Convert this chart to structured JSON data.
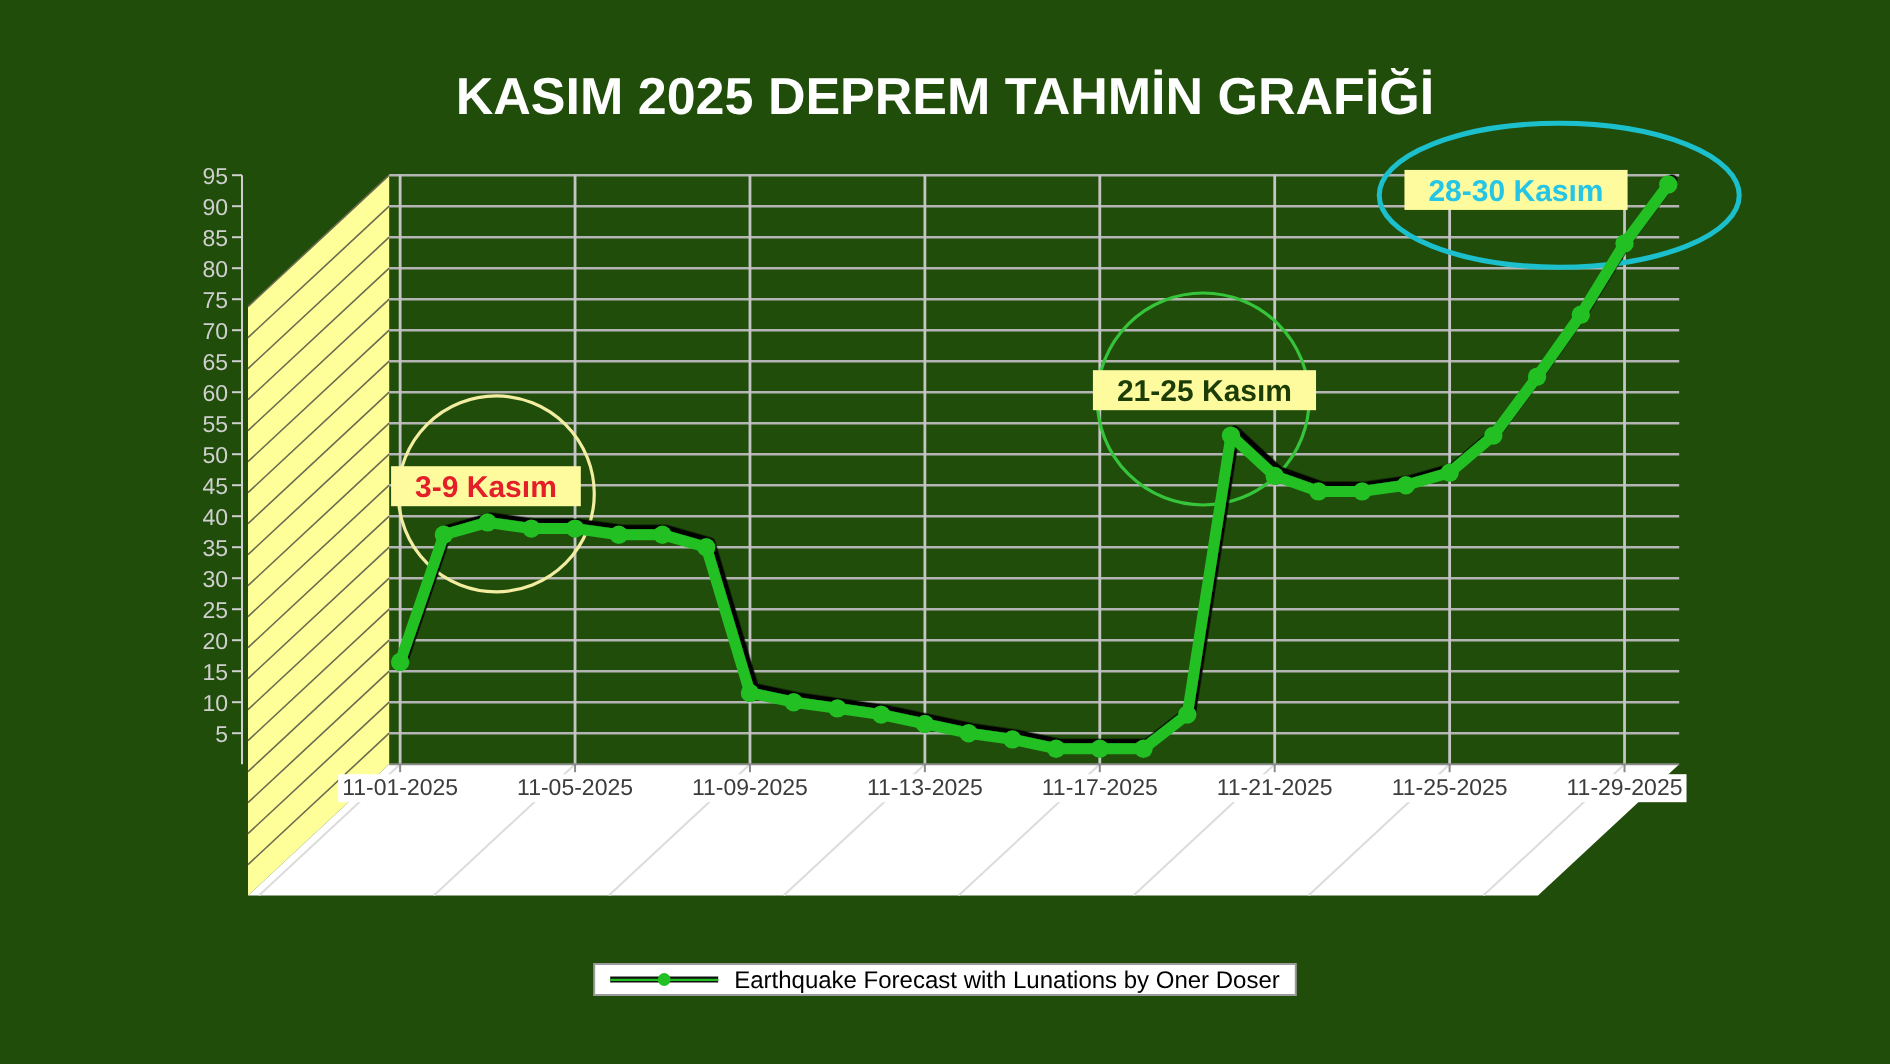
{
  "chart_data": {
    "type": "line",
    "title": "KASIM 2025 DEPREM TAHMİN GRAFİĞİ",
    "x": [
      "2025-11-01",
      "2025-11-02",
      "2025-11-03",
      "2025-11-04",
      "2025-11-05",
      "2025-11-06",
      "2025-11-07",
      "2025-11-08",
      "2025-11-09",
      "2025-11-10",
      "2025-11-11",
      "2025-11-12",
      "2025-11-13",
      "2025-11-14",
      "2025-11-15",
      "2025-11-16",
      "2025-11-17",
      "2025-11-18",
      "2025-11-19",
      "2025-11-20",
      "2025-11-21",
      "2025-11-22",
      "2025-11-23",
      "2025-11-24",
      "2025-11-25",
      "2025-11-26",
      "2025-11-27",
      "2025-11-28",
      "2025-11-29",
      "2025-11-30"
    ],
    "series": [
      {
        "name": "Earthquake Forecast with Lunations by Oner Doser",
        "color": "#22c022",
        "values": [
          16.5,
          37,
          39,
          38,
          38,
          37,
          37,
          35,
          11.5,
          10,
          9,
          8,
          6.5,
          5,
          4,
          2.5,
          2.5,
          2.5,
          8,
          53,
          46.5,
          44,
          44,
          45,
          47,
          53,
          62.5,
          72.5,
          84,
          93.5
        ]
      }
    ],
    "xlim": [
      "2025-10-31T18:00",
      "2025-11-30T06:00"
    ],
    "xticks": [
      {
        "value": "2025-11-01",
        "label": "11-01-2025"
      },
      {
        "value": "2025-11-05",
        "label": "11-05-2025"
      },
      {
        "value": "2025-11-09",
        "label": "11-09-2025"
      },
      {
        "value": "2025-11-13",
        "label": "11-13-2025"
      },
      {
        "value": "2025-11-17",
        "label": "11-17-2025"
      },
      {
        "value": "2025-11-21",
        "label": "11-21-2025"
      },
      {
        "value": "2025-11-25",
        "label": "11-25-2025"
      },
      {
        "value": "2025-11-29",
        "label": "11-29-2025"
      }
    ],
    "ylim": [
      0,
      95
    ],
    "yticks": [
      5,
      10,
      15,
      20,
      25,
      30,
      35,
      40,
      45,
      50,
      55,
      60,
      65,
      70,
      75,
      80,
      85,
      90,
      95
    ],
    "grid": true,
    "legend": "bottom",
    "marker": "circle",
    "line_style": "solid",
    "annotations": [
      "3-9 Kasım",
      "21-25 Kasım",
      "28-30 Kasım"
    ]
  }
}
